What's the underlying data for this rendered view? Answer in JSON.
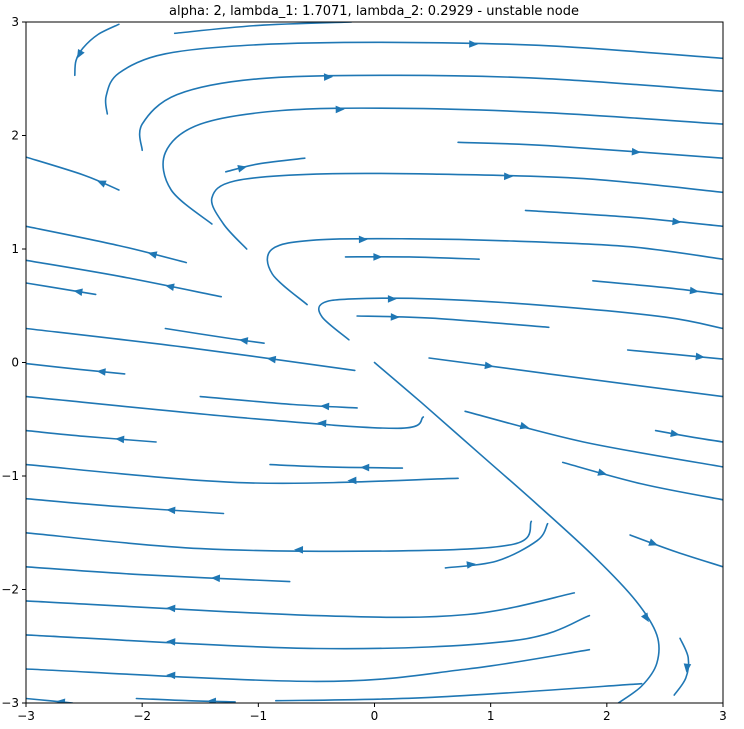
{
  "chart_data": {
    "type": "streamplot",
    "title": "alpha: 2, lambda_1: 1.7071, lambda_2: 0.2929 - unstable node",
    "xlabel": "",
    "ylabel": "",
    "xlim": [
      -3,
      3
    ],
    "ylim": [
      -3,
      3
    ],
    "x_ticks": [
      -3,
      -2,
      -1,
      0,
      1,
      2,
      3
    ],
    "y_ticks": [
      -3,
      -2,
      -1,
      0,
      1,
      2,
      3
    ],
    "x_tick_labels": [
      "−3",
      "−2",
      "−1",
      "0",
      "1",
      "2",
      "3"
    ],
    "y_tick_labels": [
      "−3",
      "−2",
      "−1",
      "0",
      "1",
      "2",
      "3"
    ],
    "grid": false,
    "line_color": "#1f77b4",
    "fixed_point": [
      0,
      0
    ],
    "streamlines": [
      {
        "points": [
          [
            -2.58,
            2.53
          ],
          [
            -2.57,
            2.66
          ],
          [
            -2.51,
            2.77
          ],
          [
            -2.38,
            2.89
          ],
          [
            -2.2,
            2.98
          ]
        ],
        "arrows": [
          [
            2,
            1
          ]
        ]
      },
      {
        "points": [
          [
            -1.72,
            2.9
          ],
          [
            -1.0,
            2.97
          ],
          [
            -0.2,
            3.0
          ]
        ],
        "arrows": []
      },
      {
        "points": [
          [
            -2.3,
            2.19
          ],
          [
            -2.31,
            2.35
          ],
          [
            -2.2,
            2.55
          ],
          [
            -1.8,
            2.72
          ],
          [
            -1.0,
            2.8
          ],
          [
            0.2,
            2.82
          ],
          [
            1.5,
            2.79
          ],
          [
            3.0,
            2.68
          ]
        ],
        "arrows": [
          [
            5,
            6
          ]
        ]
      },
      {
        "points": [
          [
            -2.0,
            1.87
          ],
          [
            -2.0,
            2.1
          ],
          [
            -1.7,
            2.36
          ],
          [
            -1.0,
            2.5
          ],
          [
            0.2,
            2.53
          ],
          [
            1.5,
            2.5
          ],
          [
            3.0,
            2.39
          ]
        ],
        "arrows": [
          [
            3,
            4
          ]
        ]
      },
      {
        "points": [
          [
            -1.4,
            1.22
          ],
          [
            -1.75,
            1.52
          ],
          [
            -1.8,
            1.85
          ],
          [
            -1.5,
            2.1
          ],
          [
            -0.8,
            2.22
          ],
          [
            0.2,
            2.24
          ],
          [
            1.5,
            2.2
          ],
          [
            3.0,
            2.1
          ]
        ],
        "arrows": [
          [
            4,
            5
          ]
        ]
      },
      {
        "points": [
          [
            -1.1,
            1.0
          ],
          [
            -1.3,
            1.22
          ],
          [
            -1.4,
            1.45
          ],
          [
            -1.2,
            1.6
          ],
          [
            -0.5,
            1.66
          ],
          [
            0.5,
            1.66
          ],
          [
            1.8,
            1.62
          ],
          [
            3.0,
            1.5
          ]
        ],
        "arrows": [
          [
            5,
            6
          ]
        ]
      },
      {
        "points": [
          [
            -0.58,
            0.51
          ],
          [
            -0.88,
            0.78
          ],
          [
            -0.88,
            1.0
          ],
          [
            -0.5,
            1.08
          ],
          [
            0.3,
            1.09
          ],
          [
            1.2,
            1.07
          ],
          [
            2.2,
            1.02
          ],
          [
            3.0,
            0.91
          ]
        ],
        "arrows": [
          [
            3,
            4
          ]
        ]
      },
      {
        "points": [
          [
            -0.22,
            0.2
          ],
          [
            -0.45,
            0.4
          ],
          [
            -0.45,
            0.52
          ],
          [
            -0.2,
            0.56
          ],
          [
            0.5,
            0.56
          ],
          [
            1.5,
            0.5
          ],
          [
            2.5,
            0.4
          ],
          [
            3.0,
            0.3
          ]
        ],
        "arrows": [
          [
            3,
            4
          ]
        ]
      },
      {
        "points": [
          [
            0.0,
            0.0
          ],
          [
            0.4,
            -0.35
          ],
          [
            0.9,
            -0.8
          ],
          [
            1.4,
            -1.25
          ],
          [
            1.9,
            -1.72
          ],
          [
            2.25,
            -2.1
          ],
          [
            2.43,
            -2.4
          ],
          [
            2.43,
            -2.65
          ],
          [
            2.3,
            -2.85
          ],
          [
            2.1,
            -3.0
          ]
        ],
        "arrows": [
          [
            5,
            6
          ]
        ]
      },
      {
        "points": [
          [
            -1.28,
            1.68
          ],
          [
            -1.0,
            1.75
          ],
          [
            -0.6,
            1.8
          ]
        ],
        "arrows": [
          [
            0,
            1
          ]
        ]
      },
      {
        "points": [
          [
            -0.25,
            0.93
          ],
          [
            0.3,
            0.93
          ],
          [
            0.9,
            0.91
          ]
        ],
        "arrows": [
          [
            0,
            1
          ]
        ]
      },
      {
        "points": [
          [
            -0.15,
            0.41
          ],
          [
            0.5,
            0.39
          ],
          [
            1.5,
            0.31
          ]
        ],
        "arrows": [
          [
            0,
            1
          ]
        ]
      },
      {
        "points": [
          [
            0.72,
            1.94
          ],
          [
            1.5,
            1.91
          ],
          [
            3.0,
            1.8
          ]
        ],
        "arrows": [
          [
            1,
            2
          ]
        ]
      },
      {
        "points": [
          [
            1.3,
            1.34
          ],
          [
            2.2,
            1.28
          ],
          [
            3.0,
            1.2
          ]
        ],
        "arrows": [
          [
            1,
            2
          ]
        ]
      },
      {
        "points": [
          [
            1.88,
            0.72
          ],
          [
            2.5,
            0.66
          ],
          [
            3.0,
            0.6
          ]
        ],
        "arrows": [
          [
            1,
            2
          ]
        ]
      },
      {
        "points": [
          [
            2.18,
            0.11
          ],
          [
            2.6,
            0.07
          ],
          [
            3.0,
            0.03
          ]
        ],
        "arrows": [
          [
            1,
            2
          ]
        ]
      },
      {
        "points": [
          [
            0.47,
            0.04
          ],
          [
            1.5,
            -0.1
          ],
          [
            3.0,
            -0.3
          ]
        ],
        "arrows": [
          [
            0,
            1
          ]
        ]
      },
      {
        "points": [
          [
            0.78,
            -0.43
          ],
          [
            1.8,
            -0.7
          ],
          [
            3.0,
            -0.92
          ]
        ],
        "arrows": [
          [
            0,
            1
          ]
        ]
      },
      {
        "points": [
          [
            2.42,
            -0.6
          ],
          [
            2.75,
            -0.66
          ],
          [
            3.0,
            -0.7
          ]
        ],
        "arrows": [
          [
            0,
            1
          ]
        ]
      },
      {
        "points": [
          [
            1.62,
            -0.88
          ],
          [
            2.3,
            -1.07
          ],
          [
            3.0,
            -1.21
          ]
        ],
        "arrows": [
          [
            0,
            1
          ]
        ]
      },
      {
        "points": [
          [
            2.2,
            -1.52
          ],
          [
            2.6,
            -1.67
          ],
          [
            3.0,
            -1.8
          ]
        ],
        "arrows": [
          [
            0,
            1
          ]
        ]
      },
      {
        "points": [
          [
            2.63,
            -2.43
          ],
          [
            2.7,
            -2.6
          ],
          [
            2.68,
            -2.78
          ],
          [
            2.58,
            -2.93
          ]
        ],
        "arrows": [
          [
            1,
            2
          ]
        ]
      },
      {
        "points": [
          [
            0.61,
            -1.81
          ],
          [
            1.05,
            -1.75
          ],
          [
            1.4,
            -1.57
          ],
          [
            1.49,
            -1.42
          ]
        ],
        "arrows": [
          [
            0,
            1
          ]
        ]
      },
      {
        "points": [
          [
            -2.2,
            1.52
          ],
          [
            -2.5,
            1.65
          ],
          [
            -3.0,
            1.81
          ]
        ],
        "arrows": [
          [
            0,
            1
          ]
        ]
      },
      {
        "points": [
          [
            -1.62,
            0.88
          ],
          [
            -2.2,
            1.03
          ],
          [
            -3.0,
            1.2
          ]
        ],
        "arrows": [
          [
            0,
            1
          ]
        ]
      },
      {
        "points": [
          [
            -1.32,
            0.58
          ],
          [
            -2.2,
            0.76
          ],
          [
            -3.0,
            0.9
          ]
        ],
        "arrows": [
          [
            0,
            1
          ]
        ]
      },
      {
        "points": [
          [
            -2.4,
            0.6
          ],
          [
            -2.7,
            0.65
          ],
          [
            -3.0,
            0.7
          ]
        ],
        "arrows": [
          [
            0,
            1
          ]
        ]
      },
      {
        "points": [
          [
            -0.95,
            0.17
          ],
          [
            -1.3,
            0.22
          ],
          [
            -1.8,
            0.3
          ]
        ],
        "arrows": [
          [
            0,
            1
          ]
        ]
      },
      {
        "points": [
          [
            -0.17,
            -0.07
          ],
          [
            -1.6,
            0.13
          ],
          [
            -3.0,
            0.3
          ]
        ],
        "arrows": [
          [
            0,
            1
          ]
        ]
      },
      {
        "points": [
          [
            -2.15,
            -0.1
          ],
          [
            -2.55,
            -0.06
          ],
          [
            -3.0,
            -0.01
          ]
        ],
        "arrows": [
          [
            0,
            1
          ]
        ]
      },
      {
        "points": [
          [
            -0.15,
            -0.4
          ],
          [
            -0.7,
            -0.37
          ],
          [
            -1.5,
            -0.3
          ]
        ],
        "arrows": [
          [
            0,
            1
          ]
        ]
      },
      {
        "points": [
          [
            0.42,
            -0.48
          ],
          [
            0.2,
            -0.58
          ],
          [
            -1.1,
            -0.49
          ],
          [
            -3.0,
            -0.3
          ]
        ],
        "arrows": [
          [
            1,
            2
          ]
        ]
      },
      {
        "points": [
          [
            -1.88,
            -0.7
          ],
          [
            -2.5,
            -0.65
          ],
          [
            -3.0,
            -0.6
          ]
        ],
        "arrows": [
          [
            0,
            1
          ]
        ]
      },
      {
        "points": [
          [
            0.24,
            -0.93
          ],
          [
            -0.4,
            -0.92
          ],
          [
            -0.9,
            -0.9
          ]
        ],
        "arrows": [
          [
            0,
            1
          ]
        ]
      },
      {
        "points": [
          [
            0.72,
            -1.02
          ],
          [
            -1.1,
            -1.06
          ],
          [
            -3.0,
            -0.9
          ]
        ],
        "arrows": [
          [
            0,
            1
          ]
        ]
      },
      {
        "points": [
          [
            -1.3,
            -1.33
          ],
          [
            -2.2,
            -1.27
          ],
          [
            -3.0,
            -1.2
          ]
        ],
        "arrows": [
          [
            0,
            1
          ]
        ]
      },
      {
        "points": [
          [
            1.35,
            -1.4
          ],
          [
            1.2,
            -1.6
          ],
          [
            0.2,
            -1.66
          ],
          [
            -1.5,
            -1.64
          ],
          [
            -3.0,
            -1.5
          ]
        ],
        "arrows": [
          [
            2,
            3
          ]
        ]
      },
      {
        "points": [
          [
            -0.73,
            -1.93
          ],
          [
            -2.0,
            -1.87
          ],
          [
            -3.0,
            -1.8
          ]
        ],
        "arrows": [
          [
            0,
            1
          ]
        ]
      },
      {
        "points": [
          [
            1.72,
            -2.03
          ],
          [
            0.8,
            -2.22
          ],
          [
            -0.5,
            -2.23
          ],
          [
            -3.0,
            -2.1
          ]
        ],
        "arrows": [
          [
            2,
            3
          ]
        ]
      },
      {
        "points": [
          [
            1.85,
            -2.23
          ],
          [
            1.2,
            -2.45
          ],
          [
            -0.5,
            -2.52
          ],
          [
            -3.0,
            -2.4
          ]
        ],
        "arrows": [
          [
            2,
            3
          ]
        ]
      },
      {
        "points": [
          [
            1.85,
            -2.53
          ],
          [
            0.8,
            -2.7
          ],
          [
            -0.5,
            -2.81
          ],
          [
            -3.0,
            -2.7
          ]
        ],
        "arrows": [
          [
            2,
            3
          ]
        ]
      },
      {
        "points": [
          [
            2.3,
            -2.83
          ],
          [
            0.5,
            -2.95
          ],
          [
            -0.85,
            -2.98
          ]
        ],
        "arrows": []
      },
      {
        "points": [
          [
            -1.2,
            -2.99
          ],
          [
            -1.6,
            -2.98
          ],
          [
            -2.05,
            -2.96
          ]
        ],
        "arrows": [
          [
            0,
            1
          ]
        ]
      },
      {
        "points": [
          [
            -2.6,
            -3.0
          ],
          [
            -2.8,
            -2.98
          ],
          [
            -3.0,
            -2.96
          ]
        ],
        "arrows": [
          [
            0,
            1
          ]
        ]
      }
    ]
  }
}
